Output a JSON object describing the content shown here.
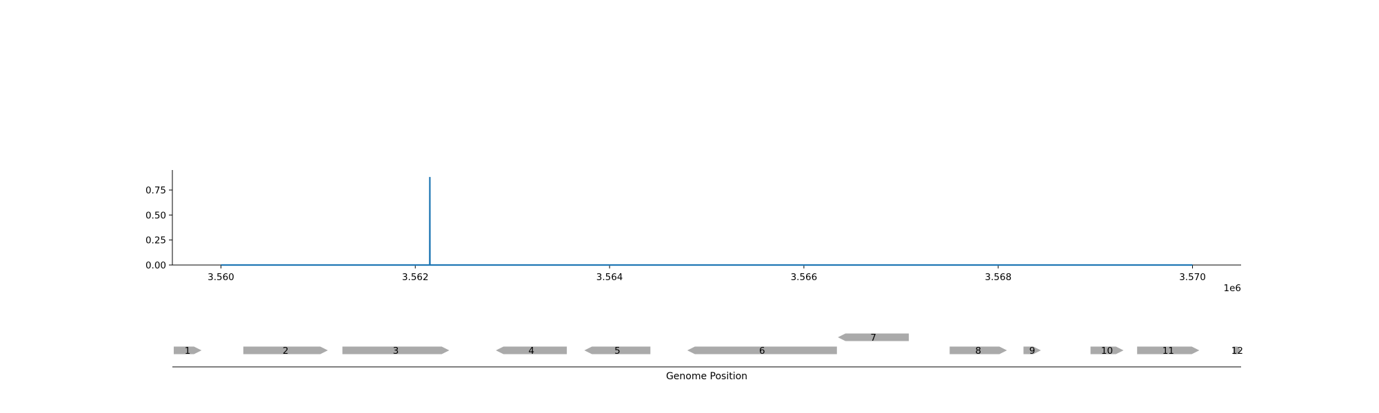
{
  "chart_data": [
    {
      "type": "line",
      "title": "",
      "xlabel": "",
      "ylabel": "",
      "x_offset_label": "1e6",
      "xlim": [
        3559500,
        3570500
      ],
      "ylim": [
        0,
        0.95
      ],
      "x_ticks": [
        3560000,
        3562000,
        3564000,
        3566000,
        3568000,
        3570000
      ],
      "x_tick_labels": [
        "3.560",
        "3.562",
        "3.564",
        "3.566",
        "3.568",
        "3.570"
      ],
      "y_ticks": [
        0,
        0.25,
        0.5,
        0.75
      ],
      "y_tick_labels": [
        "0.00",
        "0.25",
        "0.50",
        "0.75"
      ],
      "grid": false,
      "color": "#1f77b4",
      "series": [
        {
          "x": [
            3560000,
            3562149,
            3562150,
            3562151,
            3570000
          ],
          "y": [
            0,
            0,
            0.88,
            0,
            0
          ]
        }
      ]
    },
    {
      "type": "gene_track",
      "xlabel": "Genome Position",
      "color": "#aaaaaa",
      "genes": [
        {
          "label": "1",
          "start": 3559510,
          "end": 3559800,
          "strand": 1,
          "row": 0
        },
        {
          "label": "2",
          "start": 3560230,
          "end": 3561100,
          "strand": 1,
          "row": 0
        },
        {
          "label": "3",
          "start": 3561250,
          "end": 3562350,
          "strand": 1,
          "row": 0
        },
        {
          "label": "4",
          "start": 3562830,
          "end": 3563560,
          "strand": -1,
          "row": 0
        },
        {
          "label": "5",
          "start": 3563740,
          "end": 3564420,
          "strand": -1,
          "row": 0
        },
        {
          "label": "6",
          "start": 3564800,
          "end": 3566340,
          "strand": -1,
          "row": 0
        },
        {
          "label": "7",
          "start": 3566350,
          "end": 3567080,
          "strand": -1,
          "row": 1
        },
        {
          "label": "8",
          "start": 3567500,
          "end": 3568090,
          "strand": 1,
          "row": 0
        },
        {
          "label": "9",
          "start": 3568260,
          "end": 3568440,
          "strand": 1,
          "row": 0
        },
        {
          "label": "10",
          "start": 3568950,
          "end": 3569290,
          "strand": 1,
          "row": 0
        },
        {
          "label": "11",
          "start": 3569430,
          "end": 3570070,
          "strand": 1,
          "row": 0
        },
        {
          "label": "12",
          "start": 3570420,
          "end": 3570500,
          "strand": 1,
          "row": 0
        }
      ]
    }
  ]
}
